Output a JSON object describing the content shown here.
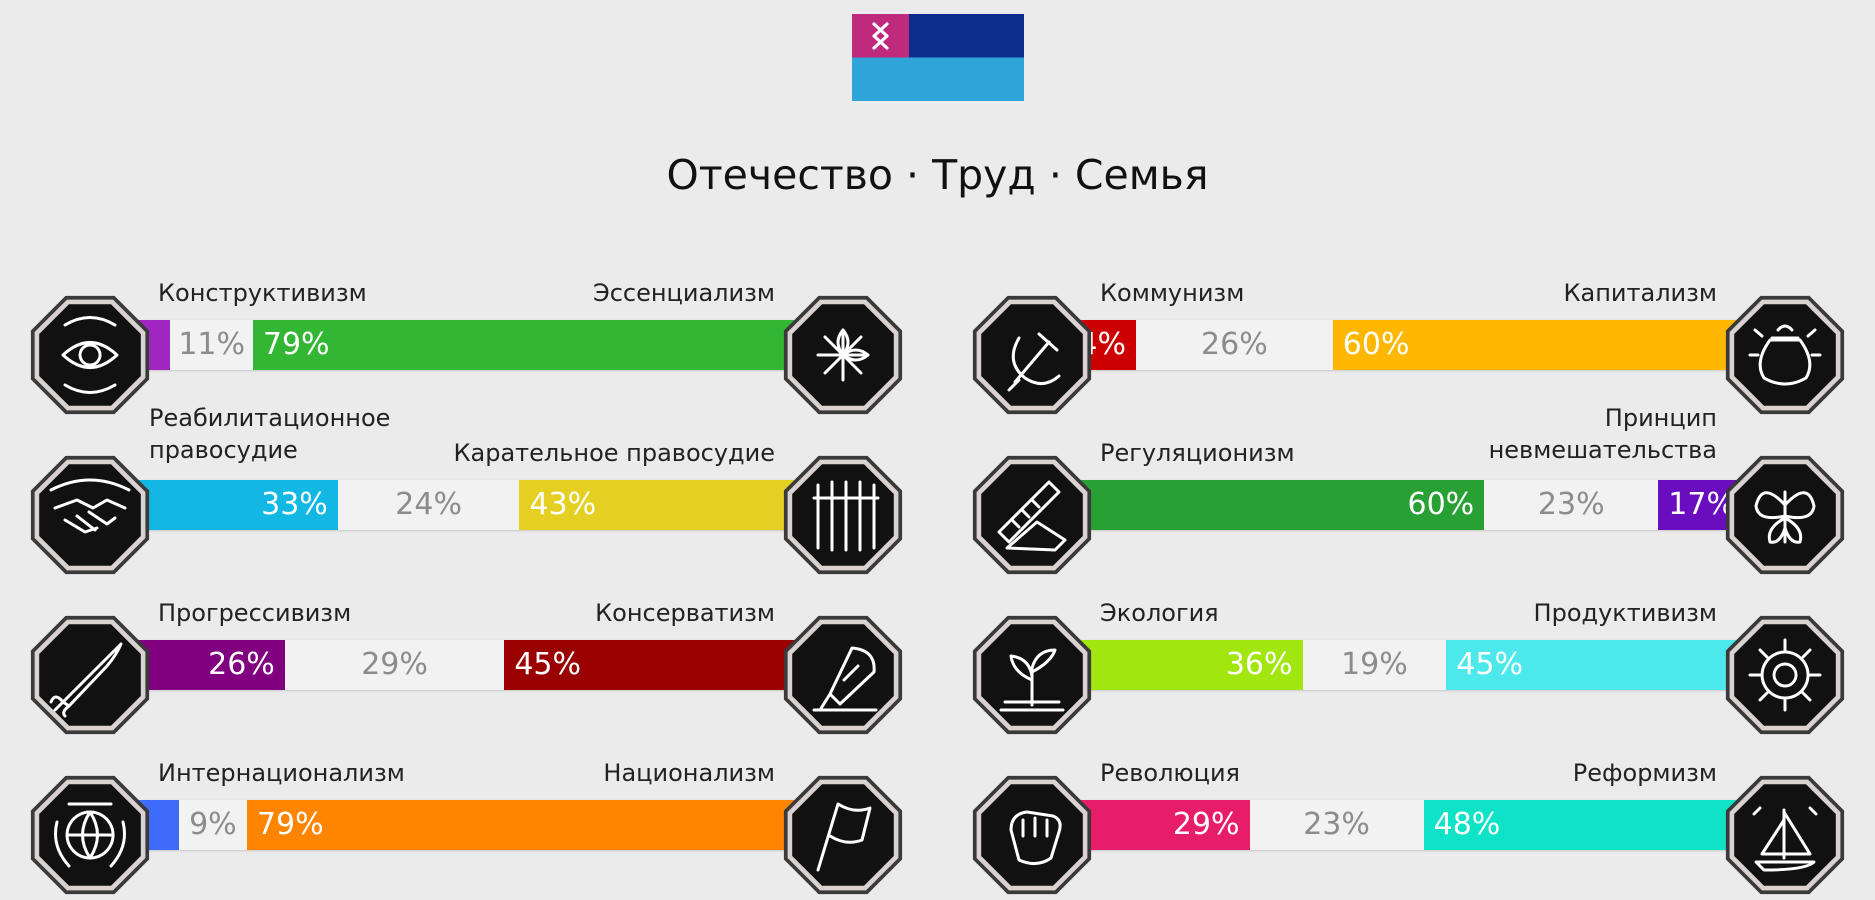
{
  "motto": "Отечество · Труд · Семья",
  "colors": {
    "flag_magenta": "#c02a7c",
    "flag_navy": "#0c2d8a",
    "flag_sky": "#2fa4d8"
  },
  "chart_data": [
    {
      "type": "bar",
      "title": "",
      "left_label": "Конструктивизм",
      "right_label": "Эссенциализм",
      "left_icon": "eye-icon",
      "right_icon": "flower-icon",
      "values": [
        11,
        11,
        79
      ],
      "value_labels": [
        "",
        "11%",
        "79%"
      ],
      "colors": [
        "#a026c2",
        "#f2f2f2",
        "#34b635"
      ]
    },
    {
      "type": "bar",
      "title": "",
      "left_label": "Коммунизм",
      "right_label": "Капитализм",
      "left_icon": "hammer-sickle-icon",
      "right_icon": "money-bag-icon",
      "values": [
        14,
        26,
        60
      ],
      "value_labels": [
        "14%",
        "26%",
        "60%"
      ],
      "colors": [
        "#cc0000",
        "#f2f2f2",
        "#ffb700"
      ]
    },
    {
      "type": "bar",
      "title": "",
      "left_label": "Реабилитационное правосудие",
      "right_label": "Карательное правосудие",
      "left_icon": "handshake-icon",
      "right_icon": "prison-bars-icon",
      "values": [
        33,
        24,
        43
      ],
      "value_labels": [
        "33%",
        "24%",
        "43%"
      ],
      "colors": [
        "#13b7e3",
        "#f2f2f2",
        "#e5cf23"
      ]
    },
    {
      "type": "bar",
      "title": "",
      "left_label": "Регуляционизм",
      "right_label": "Принцип невмешательства",
      "left_icon": "ruler-icon",
      "right_icon": "butterfly-icon",
      "values": [
        60,
        23,
        17
      ],
      "value_labels": [
        "60%",
        "23%",
        "17%"
      ],
      "colors": [
        "#29a033",
        "#f2f2f2",
        "#6a0dbf"
      ]
    },
    {
      "type": "bar",
      "title": "",
      "left_label": "Прогрессивизм",
      "right_label": "Консерватизм",
      "left_icon": "rocket-icon",
      "right_icon": "quill-icon",
      "values": [
        26,
        29,
        45
      ],
      "value_labels": [
        "26%",
        "29%",
        "45%"
      ],
      "colors": [
        "#800080",
        "#f2f2f2",
        "#990000"
      ]
    },
    {
      "type": "bar",
      "title": "",
      "left_label": "Экология",
      "right_label": "Продуктивизм",
      "left_icon": "sprout-icon",
      "right_icon": "gear-icon",
      "values": [
        36,
        19,
        45
      ],
      "value_labels": [
        "36%",
        "19%",
        "45%"
      ],
      "colors": [
        "#a1e60f",
        "#f2f2f2",
        "#4de8ec"
      ]
    },
    {
      "type": "bar",
      "title": "",
      "left_label": "Интернационализм",
      "right_label": "Национализм",
      "left_icon": "globe-icon",
      "right_icon": "flag-icon",
      "values": [
        12,
        9,
        79
      ],
      "value_labels": [
        "",
        "9%",
        "79%"
      ],
      "colors": [
        "#3f6bfb",
        "#f2f2f2",
        "#ff8500"
      ]
    },
    {
      "type": "bar",
      "title": "",
      "left_label": "Революция",
      "right_label": "Реформизм",
      "left_icon": "fist-icon",
      "right_icon": "sailboat-icon",
      "values": [
        29,
        23,
        48
      ],
      "value_labels": [
        "29%",
        "23%",
        "48%"
      ],
      "colors": [
        "#e71d6a",
        "#f2f2f2",
        "#0ee3c8"
      ]
    }
  ]
}
